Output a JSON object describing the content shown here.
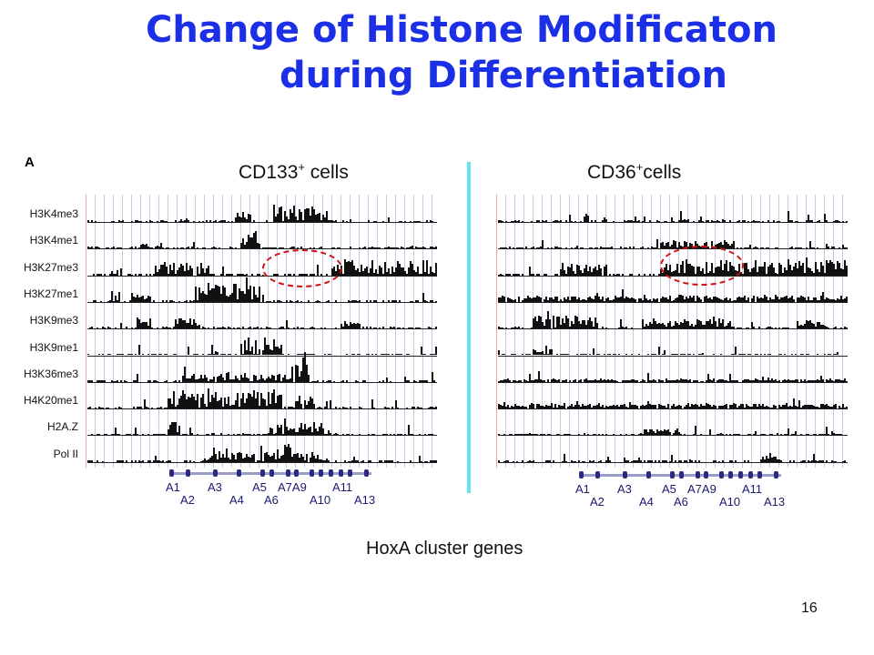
{
  "title": {
    "line1": "Change of Histone Modificaton",
    "line2": "during Differentiation"
  },
  "figure": {
    "panel_label": "A",
    "left_panel": {
      "name": "CD133",
      "sup": "+",
      "suffix": " cells"
    },
    "right_panel": {
      "name": "CD36",
      "sup": "+",
      "suffix": "cells"
    },
    "tracks": [
      "H3K4me3",
      "H3K4me1",
      "H3K27me3",
      "H3K27me1",
      "H3K9me3",
      "H3K9me1",
      "H3K36me3",
      "H4K20me1",
      "H2A.Z",
      "Pol II"
    ],
    "genes_row1": [
      "A1",
      "A3",
      "A5",
      "A7A9",
      "A11"
    ],
    "genes_row2": [
      "A2",
      "A4",
      "A6",
      "A10",
      "A13"
    ],
    "highlight_color": "#d01010",
    "divider_color": "#5fe6f0"
  },
  "caption": "HoxA cluster genes",
  "page_number": "16"
}
